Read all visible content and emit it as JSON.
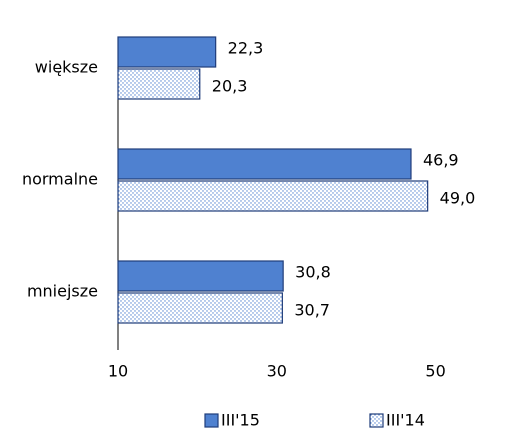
{
  "chart_data": {
    "type": "hbar",
    "categories": [
      "większe",
      "normalne",
      "mniejsze"
    ],
    "series": [
      {
        "name": "III'15",
        "color": "#4f81d0",
        "values": [
          22.3,
          46.9,
          30.8
        ],
        "value_labels": [
          "22,3",
          "46,9",
          "30,8"
        ]
      },
      {
        "name": "III'14",
        "color": "#4f81d0",
        "values": [
          20.3,
          49.0,
          30.7
        ],
        "value_labels": [
          "20,3",
          "49,0",
          "30,7"
        ]
      }
    ],
    "xlim": [
      10,
      60
    ],
    "xticks": [
      10,
      30,
      50
    ],
    "grid": false,
    "legend": "bottom"
  }
}
